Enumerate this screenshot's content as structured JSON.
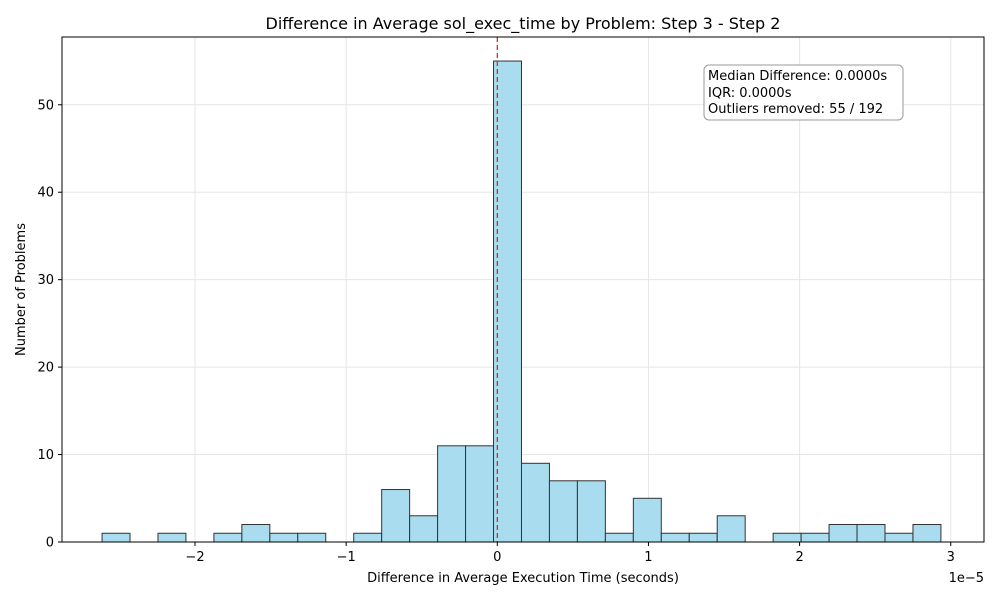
{
  "chart_data": {
    "type": "bar",
    "title": "Difference in Average sol_exec_time by Problem: Step 3 - Step 2",
    "xlabel": "Difference in Average Execution Time (seconds)",
    "ylabel": "Number of Problems",
    "x_offset_label": "1e−5",
    "x_scale": 1e-05,
    "xlim": [
      -2.88,
      3.22
    ],
    "ylim": [
      0,
      57.75
    ],
    "x_ticks": [
      -2,
      -1,
      0,
      1,
      2,
      3
    ],
    "x_tick_labels": [
      "−2",
      "−1",
      "0",
      "1",
      "2",
      "3"
    ],
    "y_ticks": [
      0,
      10,
      20,
      30,
      40,
      50
    ],
    "y_tick_labels": [
      "0",
      "10",
      "20",
      "30",
      "40",
      "50"
    ],
    "grid": true,
    "bar_color": "#a8dcee",
    "bar_edge_color": "#333333",
    "zero_line_color": "#e31a1c",
    "bins": [
      {
        "x0": -2.615,
        "x1": -2.43,
        "count": 1
      },
      {
        "x0": -2.43,
        "x1": -2.245,
        "count": 0
      },
      {
        "x0": -2.245,
        "x1": -2.06,
        "count": 1
      },
      {
        "x0": -2.06,
        "x1": -1.875,
        "count": 0
      },
      {
        "x0": -1.875,
        "x1": -1.69,
        "count": 1
      },
      {
        "x0": -1.69,
        "x1": -1.505,
        "count": 2
      },
      {
        "x0": -1.505,
        "x1": -1.32,
        "count": 1
      },
      {
        "x0": -1.32,
        "x1": -1.135,
        "count": 1
      },
      {
        "x0": -1.135,
        "x1": -0.95,
        "count": 0
      },
      {
        "x0": -0.95,
        "x1": -0.765,
        "count": 1
      },
      {
        "x0": -0.765,
        "x1": -0.58,
        "count": 6
      },
      {
        "x0": -0.58,
        "x1": -0.395,
        "count": 3
      },
      {
        "x0": -0.395,
        "x1": -0.21,
        "count": 11
      },
      {
        "x0": -0.21,
        "x1": -0.025,
        "count": 11
      },
      {
        "x0": -0.025,
        "x1": 0.16,
        "count": 55
      },
      {
        "x0": 0.16,
        "x1": 0.345,
        "count": 9
      },
      {
        "x0": 0.345,
        "x1": 0.53,
        "count": 7
      },
      {
        "x0": 0.53,
        "x1": 0.715,
        "count": 7
      },
      {
        "x0": 0.715,
        "x1": 0.9,
        "count": 1
      },
      {
        "x0": 0.9,
        "x1": 1.085,
        "count": 5
      },
      {
        "x0": 1.085,
        "x1": 1.27,
        "count": 1
      },
      {
        "x0": 1.27,
        "x1": 1.455,
        "count": 1
      },
      {
        "x0": 1.455,
        "x1": 1.64,
        "count": 3
      },
      {
        "x0": 1.64,
        "x1": 1.825,
        "count": 0
      },
      {
        "x0": 1.825,
        "x1": 2.01,
        "count": 1
      },
      {
        "x0": 2.01,
        "x1": 2.195,
        "count": 1
      },
      {
        "x0": 2.195,
        "x1": 2.38,
        "count": 2
      },
      {
        "x0": 2.38,
        "x1": 2.565,
        "count": 2
      },
      {
        "x0": 2.565,
        "x1": 2.75,
        "count": 1
      },
      {
        "x0": 2.75,
        "x1": 2.935,
        "count": 2
      }
    ],
    "reference_line_x": 0,
    "annotation": {
      "lines": [
        "Median Difference: 0.0000s",
        "IQR: 0.0000s",
        "Outliers removed: 55 / 192"
      ],
      "placement": "top-right"
    }
  }
}
